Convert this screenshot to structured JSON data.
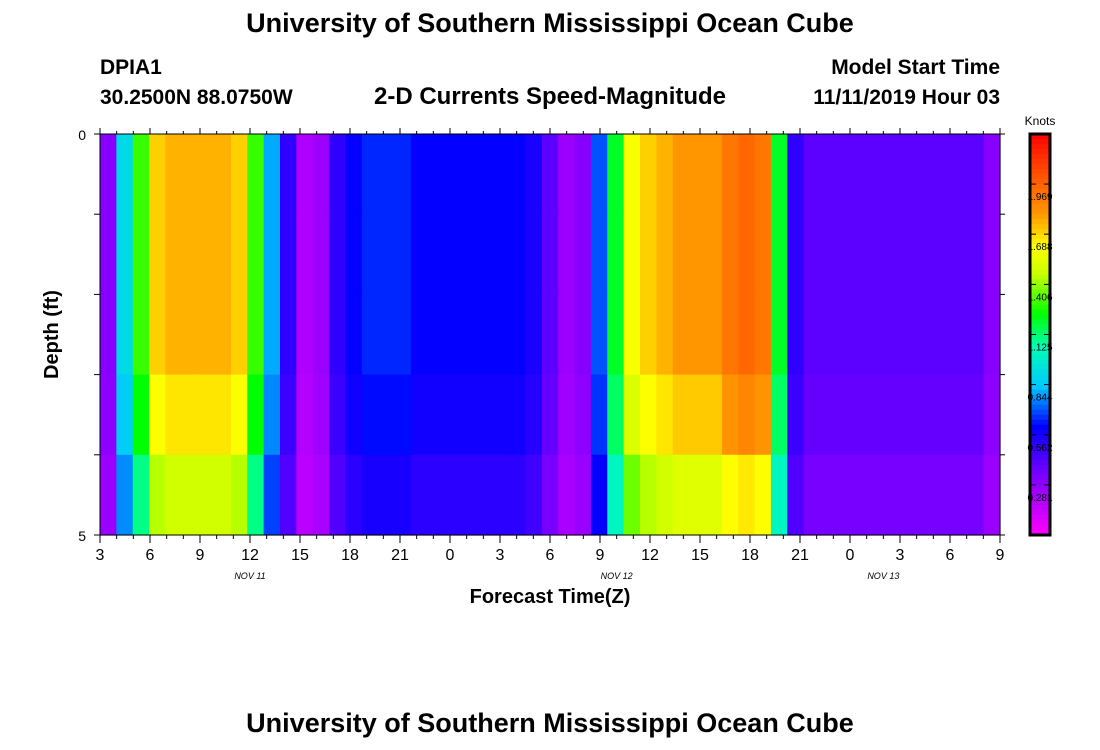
{
  "header": {
    "title": "University of Southern Mississippi Ocean Cube",
    "station": "DPIA1",
    "coords": "30.2500N 88.0750W",
    "subtitle": "2-D Currents Speed-Magnitude",
    "model_start_label": "Model Start Time",
    "model_start_value": "11/11/2019 Hour 03"
  },
  "footer": {
    "title": "University of Southern Mississippi Ocean Cube"
  },
  "chart_data": {
    "type": "heatmap",
    "title": "2-D Currents Speed-Magnitude",
    "xlabel": "Forecast Time(Z)",
    "ylabel": "Depth (ft)",
    "ylim": [
      0,
      5
    ],
    "y_ticks": [
      "0",
      "5"
    ],
    "x_tick_labels": [
      "3",
      "6",
      "9",
      "12",
      "15",
      "18",
      "21",
      "0",
      "3",
      "6",
      "9",
      "12",
      "15",
      "18",
      "21",
      "0",
      "3",
      "6",
      "9"
    ],
    "date_labels": [
      {
        "label": "NOV  11",
        "hour_index": 9
      },
      {
        "label": "NOV  12",
        "hour_index": 31
      },
      {
        "label": "NOV  13",
        "hour_index": 47
      }
    ],
    "hours": 54,
    "depth_layers": 5,
    "colorbar": {
      "unit": "Knots",
      "ticks": [
        "0.281",
        "0.562",
        "0.844",
        "1.125",
        "1.406",
        "1.688",
        "1.969"
      ],
      "min": 0.0,
      "max": 2.25
    },
    "profile": [
      0.3,
      0.9,
      1.3,
      1.7,
      1.75,
      1.75,
      1.75,
      1.75,
      1.7,
      1.3,
      0.8,
      0.5,
      0.2,
      0.25,
      0.5,
      0.6,
      0.65,
      0.65,
      0.65,
      0.6,
      0.6,
      0.6,
      0.6,
      0.6,
      0.6,
      0.6,
      0.55,
      0.4,
      0.25,
      0.3,
      0.7,
      1.2,
      1.6,
      1.7,
      1.75,
      1.8,
      1.8,
      1.8,
      1.9,
      1.95,
      1.9,
      1.2,
      0.5,
      0.4,
      0.4,
      0.4,
      0.4,
      0.4,
      0.4,
      0.4,
      0.4,
      0.4,
      0.4,
      0.4,
      0.3
    ],
    "depth_factor": [
      1.0,
      1.0,
      1.0,
      0.95,
      0.85
    ]
  }
}
